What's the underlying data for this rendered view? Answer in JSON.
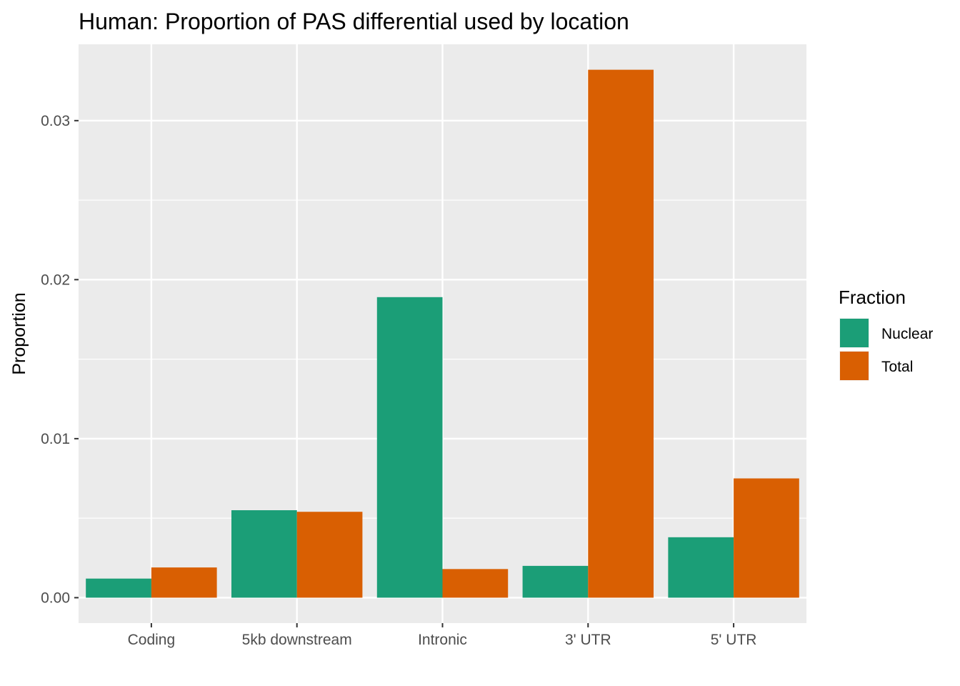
{
  "chart_data": {
    "type": "bar",
    "title": "Human: Proportion of PAS differential used by location",
    "xlabel": "",
    "ylabel": "Proportion",
    "categories": [
      "Coding",
      "5kb downstream",
      "Intronic",
      "3' UTR",
      "5' UTR"
    ],
    "series": [
      {
        "name": "Nuclear",
        "color": "#1b9e77",
        "values": [
          0.0012,
          0.0055,
          0.0189,
          0.002,
          0.0038
        ]
      },
      {
        "name": "Total",
        "color": "#d95f02",
        "values": [
          0.0019,
          0.0054,
          0.0018,
          0.0332,
          0.0075
        ]
      }
    ],
    "ylim": [
      -0.0016,
      0.0348
    ],
    "yticks": [
      0.0,
      0.01,
      0.02,
      0.03
    ],
    "ytick_labels": [
      "0.00",
      "0.01",
      "0.02",
      "0.03"
    ],
    "grid": true,
    "legend": {
      "title": "Fraction",
      "position": "right"
    }
  }
}
